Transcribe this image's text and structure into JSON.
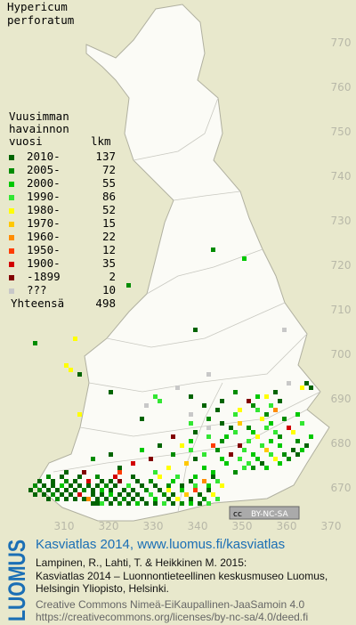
{
  "title": [
    "Hypericum",
    "perforatum"
  ],
  "map": {
    "xlim": [
      295.6,
      375.6
    ],
    "ylim": [
      661.6,
      779.6
    ],
    "xticks": [
      310,
      320,
      330,
      340,
      350,
      360,
      370
    ],
    "yticks": [
      670,
      680,
      690,
      700,
      710,
      720,
      730,
      740,
      750,
      760,
      770
    ],
    "squares": [
      [
        316,
        666,
        0
      ],
      [
        317,
        666,
        0
      ],
      [
        318,
        666,
        3
      ],
      [
        320,
        666,
        0
      ],
      [
        322,
        666,
        1
      ],
      [
        324,
        666,
        0
      ],
      [
        326,
        666,
        2
      ],
      [
        328,
        666,
        0
      ],
      [
        330,
        666,
        0
      ],
      [
        332,
        666,
        3
      ],
      [
        334,
        666,
        0
      ],
      [
        336,
        666,
        1
      ],
      [
        338,
        666,
        2
      ],
      [
        340,
        666,
        0
      ],
      [
        342,
        666,
        3
      ],
      [
        306,
        667,
        0
      ],
      [
        308,
        667,
        1
      ],
      [
        310,
        667,
        0
      ],
      [
        312,
        667,
        0
      ],
      [
        314,
        667,
        0
      ],
      [
        315,
        667,
        6
      ],
      [
        317,
        667,
        0
      ],
      [
        319,
        667,
        0
      ],
      [
        321,
        667,
        0
      ],
      [
        323,
        667,
        1
      ],
      [
        325,
        667,
        0
      ],
      [
        327,
        667,
        0
      ],
      [
        330,
        667,
        2
      ],
      [
        333,
        667,
        0
      ],
      [
        335,
        667,
        4
      ],
      [
        338,
        667,
        0
      ],
      [
        341,
        667,
        1
      ],
      [
        344,
        667,
        3
      ],
      [
        303,
        668,
        0
      ],
      [
        305,
        668,
        0
      ],
      [
        307,
        668,
        1
      ],
      [
        309,
        668,
        0
      ],
      [
        311,
        668,
        0
      ],
      [
        313,
        668,
        8
      ],
      [
        316,
        668,
        0
      ],
      [
        318,
        668,
        0
      ],
      [
        320,
        668,
        2
      ],
      [
        322,
        668,
        0
      ],
      [
        324,
        668,
        0
      ],
      [
        326,
        668,
        0
      ],
      [
        329,
        668,
        3
      ],
      [
        332,
        668,
        1
      ],
      [
        334,
        668,
        0
      ],
      [
        337,
        668,
        5
      ],
      [
        340,
        668,
        0
      ],
      [
        343,
        668,
        4
      ],
      [
        302,
        669,
        0
      ],
      [
        304,
        669,
        1
      ],
      [
        306,
        669,
        0
      ],
      [
        308,
        669,
        0
      ],
      [
        310,
        669,
        0
      ],
      [
        312,
        669,
        0
      ],
      [
        314,
        669,
        1
      ],
      [
        316,
        669,
        0
      ],
      [
        318,
        669,
        2
      ],
      [
        320,
        669,
        0
      ],
      [
        323,
        669,
        0
      ],
      [
        325,
        669,
        0
      ],
      [
        328,
        669,
        1
      ],
      [
        331,
        669,
        0
      ],
      [
        333,
        669,
        4
      ],
      [
        336,
        669,
        2
      ],
      [
        339,
        669,
        7
      ],
      [
        342,
        669,
        0
      ],
      [
        303,
        670,
        1
      ],
      [
        305,
        670,
        0
      ],
      [
        307,
        670,
        0
      ],
      [
        309,
        670,
        2
      ],
      [
        311,
        670,
        0
      ],
      [
        313,
        670,
        0
      ],
      [
        315,
        670,
        0
      ],
      [
        317,
        670,
        0
      ],
      [
        319,
        670,
        1
      ],
      [
        321,
        670,
        0
      ],
      [
        324,
        670,
        3
      ],
      [
        327,
        670,
        0
      ],
      [
        330,
        670,
        0
      ],
      [
        333,
        670,
        1
      ],
      [
        336,
        670,
        0
      ],
      [
        339,
        670,
        3
      ],
      [
        342,
        670,
        2
      ],
      [
        345,
        670,
        4
      ],
      [
        304,
        671,
        0
      ],
      [
        307,
        671,
        0
      ],
      [
        310,
        671,
        1
      ],
      [
        312,
        671,
        0
      ],
      [
        315,
        671,
        8
      ],
      [
        318,
        671,
        0
      ],
      [
        320,
        671,
        0
      ],
      [
        322,
        671,
        9
      ],
      [
        326,
        671,
        0
      ],
      [
        329,
        671,
        1
      ],
      [
        334,
        671,
        2
      ],
      [
        338,
        671,
        0
      ],
      [
        341,
        671,
        6
      ],
      [
        344,
        671,
        3
      ],
      [
        306,
        672,
        1
      ],
      [
        309,
        672,
        0
      ],
      [
        313,
        672,
        0
      ],
      [
        317,
        672,
        1
      ],
      [
        321,
        672,
        8
      ],
      [
        325,
        672,
        0
      ],
      [
        331,
        672,
        4
      ],
      [
        335,
        672,
        3
      ],
      [
        339,
        672,
        2
      ],
      [
        343,
        672,
        0
      ],
      [
        310,
        673,
        0
      ],
      [
        314,
        673,
        9
      ],
      [
        322,
        673,
        7
      ],
      [
        330,
        673,
        3
      ],
      [
        343,
        673,
        2
      ],
      [
        348,
        673,
        1
      ],
      [
        322,
        674,
        0
      ],
      [
        333,
        674,
        4
      ],
      [
        341,
        674,
        2
      ],
      [
        350,
        674,
        3
      ],
      [
        352,
        674,
        1
      ],
      [
        355,
        674,
        2
      ],
      [
        325,
        675,
        8
      ],
      [
        337,
        675,
        5
      ],
      [
        346,
        675,
        2
      ],
      [
        351,
        675,
        3
      ],
      [
        354,
        675,
        0
      ],
      [
        358,
        675,
        2
      ],
      [
        316,
        676,
        1
      ],
      [
        329,
        676,
        9
      ],
      [
        339,
        676,
        0
      ],
      [
        345,
        676,
        2
      ],
      [
        349,
        676,
        3
      ],
      [
        353,
        676,
        2
      ],
      [
        357,
        676,
        4
      ],
      [
        360,
        676,
        1
      ],
      [
        320,
        677,
        0
      ],
      [
        334,
        677,
        1
      ],
      [
        341,
        677,
        3
      ],
      [
        347,
        677,
        9
      ],
      [
        352,
        677,
        2
      ],
      [
        356,
        677,
        3
      ],
      [
        359,
        677,
        1
      ],
      [
        362,
        677,
        0
      ],
      [
        327,
        678,
        2
      ],
      [
        338,
        678,
        3
      ],
      [
        344,
        678,
        1
      ],
      [
        350,
        678,
        3
      ],
      [
        355,
        678,
        5
      ],
      [
        361,
        678,
        0
      ],
      [
        363,
        678,
        2
      ],
      [
        331,
        679,
        0
      ],
      [
        336,
        679,
        4
      ],
      [
        343,
        679,
        7
      ],
      [
        349,
        679,
        9
      ],
      [
        354,
        679,
        3
      ],
      [
        358,
        679,
        2
      ],
      [
        364,
        679,
        0
      ],
      [
        338,
        680,
        2
      ],
      [
        345,
        680,
        1
      ],
      [
        351,
        680,
        3
      ],
      [
        356,
        680,
        2
      ],
      [
        362,
        680,
        1
      ],
      [
        334,
        681,
        9
      ],
      [
        342,
        681,
        3
      ],
      [
        346,
        681,
        2
      ],
      [
        353,
        681,
        4
      ],
      [
        358,
        681,
        1
      ],
      [
        365,
        681,
        2
      ],
      [
        339,
        682,
        0
      ],
      [
        348,
        682,
        3
      ],
      [
        352,
        682,
        2
      ],
      [
        357,
        682,
        3
      ],
      [
        361,
        682,
        4
      ],
      [
        342,
        683,
        10
      ],
      [
        347,
        683,
        0
      ],
      [
        351,
        683,
        1
      ],
      [
        355,
        683,
        3
      ],
      [
        360,
        683,
        8
      ],
      [
        338,
        684,
        3
      ],
      [
        345,
        684,
        0
      ],
      [
        349,
        684,
        5
      ],
      [
        356,
        684,
        2
      ],
      [
        363,
        684,
        3
      ],
      [
        327,
        685,
        0
      ],
      [
        342,
        685,
        1
      ],
      [
        354,
        685,
        4
      ],
      [
        359,
        685,
        1
      ],
      [
        313,
        686,
        4
      ],
      [
        338,
        686,
        10
      ],
      [
        348,
        686,
        3
      ],
      [
        355,
        686,
        1
      ],
      [
        362,
        686,
        2
      ],
      [
        344,
        687,
        0
      ],
      [
        349,
        687,
        4
      ],
      [
        353,
        687,
        3
      ],
      [
        357,
        687,
        6
      ],
      [
        328,
        688,
        10
      ],
      [
        341,
        688,
        0
      ],
      [
        352,
        688,
        1
      ],
      [
        356,
        688,
        3
      ],
      [
        331,
        689,
        3
      ],
      [
        345,
        689,
        0
      ],
      [
        351,
        689,
        9
      ],
      [
        358,
        689,
        0
      ],
      [
        330,
        690,
        3
      ],
      [
        338,
        690,
        0
      ],
      [
        353,
        690,
        2
      ],
      [
        355,
        690,
        4
      ],
      [
        320,
        691,
        0
      ],
      [
        348,
        691,
        1
      ],
      [
        357,
        691,
        0
      ],
      [
        335,
        692,
        10
      ],
      [
        365,
        692,
        0
      ],
      [
        363,
        692,
        4
      ],
      [
        360,
        693,
        10
      ],
      [
        364,
        693,
        0
      ],
      [
        313,
        695,
        0
      ],
      [
        342,
        695,
        10
      ],
      [
        311,
        696,
        4
      ],
      [
        310,
        697,
        4
      ],
      [
        303,
        702,
        1
      ],
      [
        312,
        703,
        4
      ],
      [
        339,
        705,
        0
      ],
      [
        359,
        705,
        10
      ],
      [
        324,
        715,
        1
      ],
      [
        343,
        723,
        1
      ],
      [
        350,
        721,
        2
      ]
    ]
  },
  "legend": {
    "heading": [
      "Vuusimman",
      "havainnon",
      "vuosi"
    ],
    "count_heading": "lkm",
    "classes": [
      {
        "label": "2010-",
        "count": 137,
        "color": "#006400"
      },
      {
        "label": "2005-",
        "count": 72,
        "color": "#008c00"
      },
      {
        "label": "2000-",
        "count": 55,
        "color": "#00c800"
      },
      {
        "label": "1990-",
        "count": 86,
        "color": "#33e633"
      },
      {
        "label": "1980-",
        "count": 52,
        "color": "#ffff00"
      },
      {
        "label": "1970-",
        "count": 15,
        "color": "#ffc800"
      },
      {
        "label": "1960-",
        "count": 22,
        "color": "#ff8c00"
      },
      {
        "label": "1950-",
        "count": 12,
        "color": "#ff3c00"
      },
      {
        "label": "1900-",
        "count": 35,
        "color": "#d20000"
      },
      {
        "label": "-1899",
        "count": 2,
        "color": "#820000"
      },
      {
        "label": "???",
        "count": 10,
        "color": "#c8c8c8"
      }
    ],
    "total_label": "Yhteensä",
    "total": 498
  },
  "badge": [
    "cc",
    "BY-NC-SA"
  ],
  "footer": {
    "logo": "LUOMUS",
    "headline": "Kasviatlas 2014, www.luomus.fi/kasviatlas",
    "citation": [
      "Lampinen, R., Lahti, T. & Heikkinen M. 2015:",
      "Kasviatlas 2014 – Luonnontieteellinen keskusmuseo Luomus,",
      "Helsingin Yliopisto, Helsinki."
    ],
    "license": [
      "Creative Commons Nimeä-EiKaupallinen-JaaSamoin 4.0",
      "https://creativecommons.org/licenses/by-nc-sa/4.0/deed.fi"
    ]
  }
}
